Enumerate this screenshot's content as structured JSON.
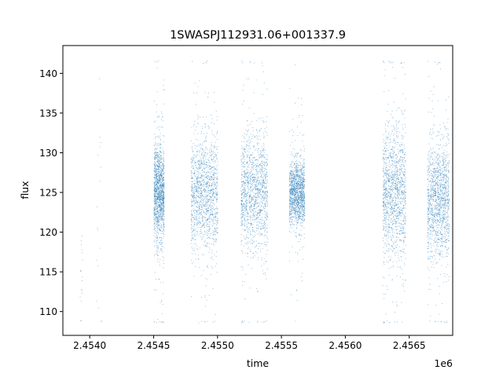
{
  "chart_data": {
    "type": "scatter",
    "title": "1SWASPJ112931.06+001337.9",
    "xlabel": "time",
    "ylabel": "flux",
    "x_offset_label": "1e6",
    "x_scale": 1000000,
    "xlim": [
      2453790,
      2456840
    ],
    "ylim": [
      107,
      143.5
    ],
    "x_ticks": [
      2454000,
      2454500,
      2455000,
      2455500,
      2456000,
      2456500
    ],
    "x_tick_labels": [
      "2.4540",
      "2.4545",
      "2.4550",
      "2.4555",
      "2.4560",
      "2.4565"
    ],
    "y_ticks": [
      110,
      115,
      120,
      125,
      130,
      135,
      140
    ],
    "y_tick_labels": [
      "110",
      "115",
      "120",
      "125",
      "130",
      "135",
      "140"
    ],
    "grid": false,
    "legend": "none",
    "marker_color": "#1f77b4",
    "observing_seasons": [
      {
        "x_start": 2453920,
        "x_end": 2453945,
        "y_center": 114,
        "y_spread": 4,
        "density": "sparse"
      },
      {
        "x_start": 2454050,
        "x_end": 2454090,
        "y_center": 124,
        "y_spread": 10,
        "density": "sparse"
      },
      {
        "x_start": 2454500,
        "x_end": 2454580,
        "y_center": 125,
        "y_spread": 3,
        "density": "dense"
      },
      {
        "x_start": 2454790,
        "x_end": 2455000,
        "y_center": 125,
        "y_spread": 3.5,
        "density": "dense"
      },
      {
        "x_start": 2455180,
        "x_end": 2455390,
        "y_center": 125,
        "y_spread": 3.5,
        "density": "dense"
      },
      {
        "x_start": 2455560,
        "x_end": 2455680,
        "y_center": 125,
        "y_spread": 2,
        "density": "dense"
      },
      {
        "x_start": 2456290,
        "x_end": 2456470,
        "y_center": 125,
        "y_spread": 4,
        "density": "dense"
      },
      {
        "x_start": 2456640,
        "x_end": 2456810,
        "y_center": 124,
        "y_spread": 3.5,
        "density": "dense"
      }
    ]
  }
}
